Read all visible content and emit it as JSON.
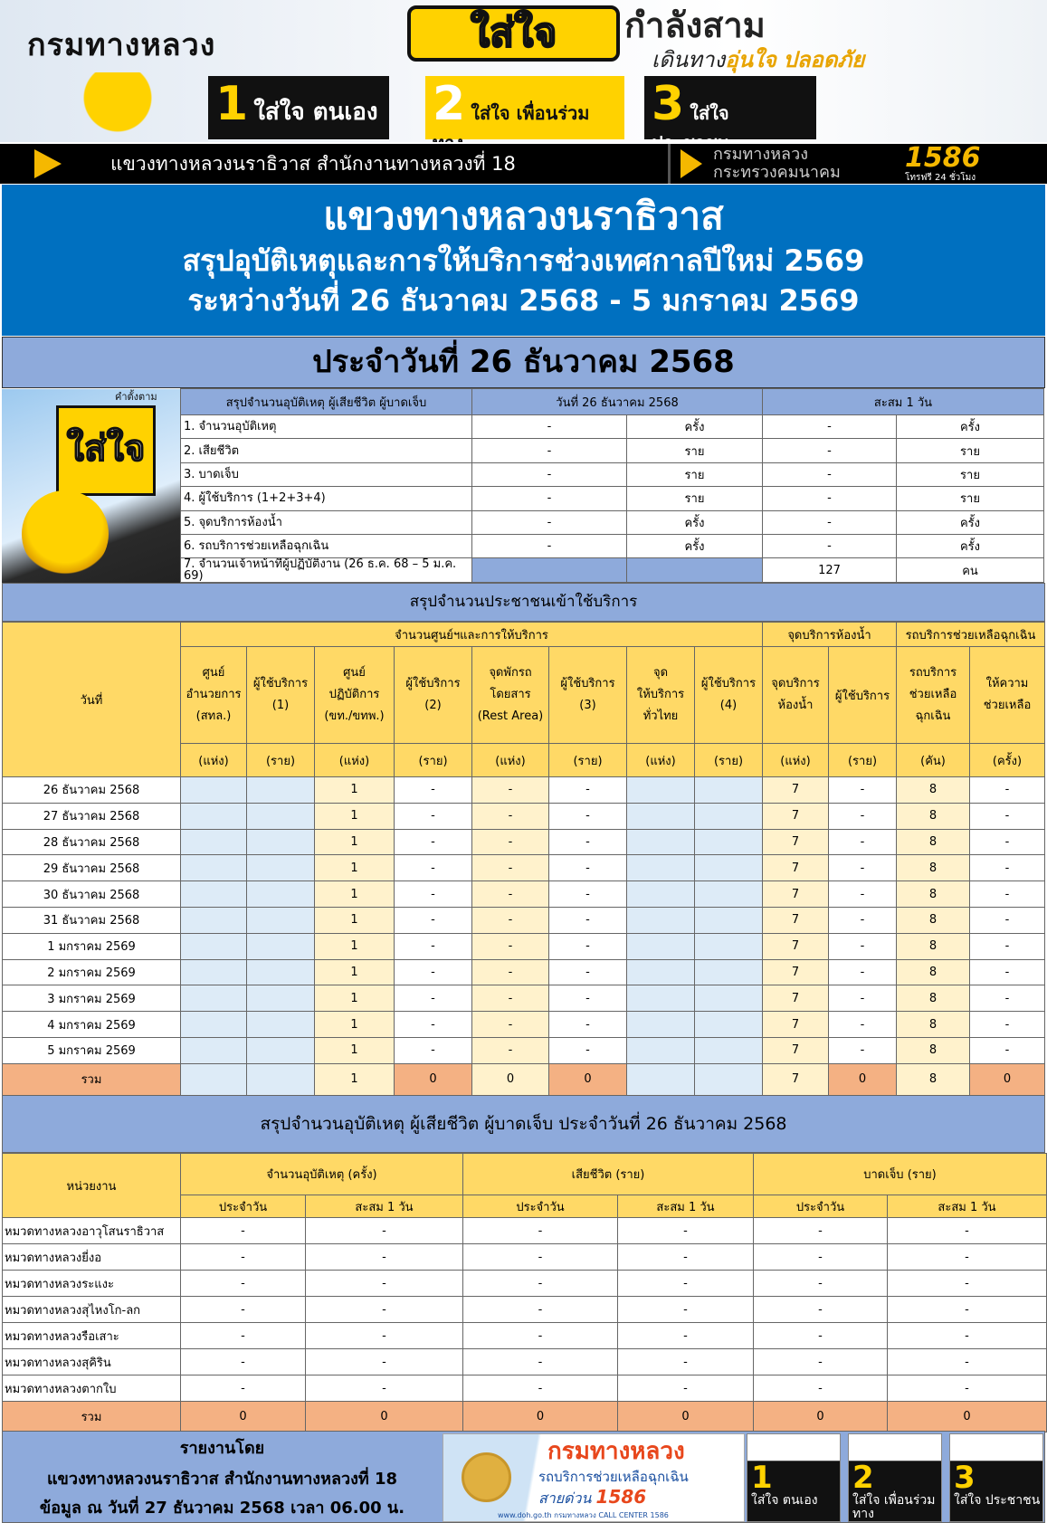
{
  "banner": {
    "logo": "กรมทางหลวง",
    "sai_jai": "ใส่ใจ",
    "kamlang_sam": "กำลังสาม",
    "doen_thang": "เดินทาง",
    "un_jai": "อุ่นใจ",
    "plot_phai": "ปลอดภัย",
    "points": [
      {
        "num": "1",
        "label": "ใส่ใจ ตนเอง"
      },
      {
        "num": "2",
        "label": "ใส่ใจ เพื่อนร่วมทาง"
      },
      {
        "num": "3",
        "label": "ใส่ใจ ประชาชน"
      }
    ]
  },
  "blackbar": {
    "office": "แขวงทางหลวงนราธิวาส  สำนักงานทางหลวงที่ 18",
    "doh": "กรมทางหลวง",
    "ministry": "กระทรวงคมนาคม",
    "hotline": "1586",
    "hotline_sub": "โทรฟรี 24 ชั่วโมง"
  },
  "title": {
    "line1": "แขวงทางหลวงนราธิวาส",
    "line2": "สรุปอุบัติเหตุและการให้บริการช่วงเทศกาลปีใหม่  2569",
    "line3": "ระหว่างวันที่  26 ธันวาคม 2568 -  5 มกราคม 2569"
  },
  "date_bar": "ประจำวันที่ 26  ธันวาคม 2568",
  "summary_image": {
    "caption": "คำตั้งตาม",
    "text": "ใส่ใจ"
  },
  "summary": {
    "headers": [
      "สรุปจำนวนอุบัติเหตุ ผู้เสียชีวิต ผู้บาดเจ็บ",
      "วันที่ 26 ธันวาคม 2568",
      "สะสม 1 วัน"
    ],
    "rows": [
      {
        "label": "1. จำนวนอุบัติเหตุ",
        "day": "-",
        "day_unit": "ครั้ง",
        "cum": "-",
        "cum_unit": "ครั้ง"
      },
      {
        "label": "2. เสียชีวิต",
        "day": "-",
        "day_unit": "ราย",
        "cum": "-",
        "cum_unit": "ราย"
      },
      {
        "label": "3. บาดเจ็บ",
        "day": "-",
        "day_unit": "ราย",
        "cum": "-",
        "cum_unit": "ราย"
      },
      {
        "label": "4. ผู้ใช้บริการ (1+2+3+4)",
        "day": "-",
        "day_unit": "ราย",
        "cum": "-",
        "cum_unit": "ราย"
      },
      {
        "label": "5. จุดบริการห้องน้ำ",
        "day": "-",
        "day_unit": "ครั้ง",
        "cum": "-",
        "cum_unit": "ครั้ง"
      },
      {
        "label": "6. รถบริการช่วยเหลือฉุกเฉิน",
        "day": "-",
        "day_unit": "ครั้ง",
        "cum": "-",
        "cum_unit": "ครั้ง"
      },
      {
        "label": "7. จำนวนเจ้าหน้าที่ผู้ปฏิบัติงาน (26 ธ.ค. 68 – 5 ม.ค. 69)",
        "day": "",
        "day_unit": "",
        "cum": "127",
        "cum_unit": "คน"
      }
    ]
  },
  "service": {
    "section_title": "สรุปจำนวนประชาชนเข้าใช้บริการ",
    "date_header": "วันที่",
    "groups": [
      "จำนวนศูนย์ฯและการให้บริการ",
      "จุดบริการห้องน้ำ",
      "รถบริการช่วยเหลือฉุกเฉิน"
    ],
    "columns": [
      "ศูนย์\nอำนวยการ\n(สทล.)",
      "ผู้ใช้บริการ\n(1)",
      "ศูนย์\nปฏิบัติการ\n(ขท./ขทพ.)",
      "ผู้ใช้บริการ\n(2)",
      "จุดพักรถ\nโดยสาร\n(Rest Area)",
      "ผู้ใช้บริการ\n(3)",
      "จุด\nให้บริการ\nทั่วไทย",
      "ผู้ใช้บริการ\n(4)",
      "จุดบริการ\nห้องน้ำ",
      "ผู้ใช้บริการ",
      "รถบริการ\nช่วยเหลือ\nฉุกเฉิน",
      "ให้ความ\nช่วยเหลือ"
    ],
    "units": [
      "(แห่ง)",
      "(ราย)",
      "(แห่ง)",
      "(ราย)",
      "(แห่ง)",
      "(ราย)",
      "(แห่ง)",
      "(ราย)",
      "(แห่ง)",
      "(ราย)",
      "(คัน)",
      "(ครั้ง)"
    ],
    "rows": [
      {
        "date": "26 ธันวาคม 2568",
        "values": [
          "",
          "",
          "1",
          "-",
          "-",
          "-",
          "",
          "",
          "7",
          "-",
          "8",
          "-"
        ]
      },
      {
        "date": "27 ธันวาคม 2568",
        "values": [
          "",
          "",
          "1",
          "-",
          "-",
          "-",
          "",
          "",
          "7",
          "-",
          "8",
          "-"
        ]
      },
      {
        "date": "28 ธันวาคม 2568",
        "values": [
          "",
          "",
          "1",
          "-",
          "-",
          "-",
          "",
          "",
          "7",
          "-",
          "8",
          "-"
        ]
      },
      {
        "date": "29 ธันวาคม 2568",
        "values": [
          "",
          "",
          "1",
          "-",
          "-",
          "-",
          "",
          "",
          "7",
          "-",
          "8",
          "-"
        ]
      },
      {
        "date": "30 ธันวาคม 2568",
        "values": [
          "",
          "",
          "1",
          "-",
          "-",
          "-",
          "",
          "",
          "7",
          "-",
          "8",
          "-"
        ]
      },
      {
        "date": "31 ธันวาคม 2568",
        "values": [
          "",
          "",
          "1",
          "-",
          "-",
          "-",
          "",
          "",
          "7",
          "-",
          "8",
          "-"
        ]
      },
      {
        "date": "1 มกราคม 2569",
        "values": [
          "",
          "",
          "1",
          "-",
          "-",
          "-",
          "",
          "",
          "7",
          "-",
          "8",
          "-"
        ]
      },
      {
        "date": "2 มกราคม 2569",
        "values": [
          "",
          "",
          "1",
          "-",
          "-",
          "-",
          "",
          "",
          "7",
          "-",
          "8",
          "-"
        ]
      },
      {
        "date": "3 มกราคม 2569",
        "values": [
          "",
          "",
          "1",
          "-",
          "-",
          "-",
          "",
          "",
          "7",
          "-",
          "8",
          "-"
        ]
      },
      {
        "date": "4 มกราคม 2569",
        "values": [
          "",
          "",
          "1",
          "-",
          "-",
          "-",
          "",
          "",
          "7",
          "-",
          "8",
          "-"
        ]
      },
      {
        "date": "5 มกราคม 2569",
        "values": [
          "",
          "",
          "1",
          "-",
          "-",
          "-",
          "",
          "",
          "7",
          "-",
          "8",
          "-"
        ]
      }
    ],
    "total": {
      "label": "รวม",
      "values": [
        "",
        "",
        "1",
        "0",
        "0",
        "0",
        "",
        "",
        "7",
        "0",
        "8",
        "0"
      ]
    }
  },
  "accidents": {
    "section_title": "สรุปจำนวนอุบัติเหตุ ผู้เสียชีวิต ผู้บาดเจ็บ ประจำวันที่ 26 ธันวาคม 2568",
    "unit_header": "หน่วยงาน",
    "groups": [
      "จำนวนอุบัติเหตุ (ครั้ง)",
      "เสียชีวิต (ราย)",
      "บาดเจ็บ (ราย)"
    ],
    "subheaders": [
      "ประจำวัน",
      "สะสม 1 วัน"
    ],
    "rows": [
      {
        "unit": "หมวดทางหลวงอาวุโสนราธิวาส",
        "values": [
          "-",
          "-",
          "-",
          "-",
          "-",
          "-"
        ]
      },
      {
        "unit": "หมวดทางหลวงยี่งอ",
        "values": [
          "-",
          "-",
          "-",
          "-",
          "-",
          "-"
        ]
      },
      {
        "unit": "หมวดทางหลวงระแงะ",
        "values": [
          "-",
          "-",
          "-",
          "-",
          "-",
          "-"
        ]
      },
      {
        "unit": "หมวดทางหลวงสุไหงโก-ลก",
        "values": [
          "-",
          "-",
          "-",
          "-",
          "-",
          "-"
        ]
      },
      {
        "unit": "หมวดทางหลวงรือเสาะ",
        "values": [
          "-",
          "-",
          "-",
          "-",
          "-",
          "-"
        ]
      },
      {
        "unit": "หมวดทางหลวงสุคิริน",
        "values": [
          "-",
          "-",
          "-",
          "-",
          "-",
          "-"
        ]
      },
      {
        "unit": "หมวดทางหลวงตากใบ",
        "values": [
          "-",
          "-",
          "-",
          "-",
          "-",
          "-"
        ]
      }
    ],
    "total": {
      "label": "รวม",
      "values": [
        "0",
        "0",
        "0",
        "0",
        "0",
        "0"
      ]
    }
  },
  "footer": {
    "reported_by": "รายงานโดย",
    "office": "แขวงทางหลวงนราธิวาส สำนักงานทางหลวงที่ 18",
    "data_as_of": "ข้อมูล ณ วันที่ 27 ธันวาคม 2568 เวลา 06.00 น.",
    "ad": {
      "logo": "กรมทางหลวง",
      "service": "รถบริการช่วยเหลือฉุกเฉิน",
      "hotline_label": "สายด่วน",
      "hotline": "1586",
      "web": "www.doh.go.th   กรมทางหลวง   CALL CENTER 1586"
    },
    "posters": [
      {
        "num": "1",
        "label": "ใส่ใจ ตนเอง"
      },
      {
        "num": "2",
        "label": "ใส่ใจ เพื่อนร่วมทาง"
      },
      {
        "num": "3",
        "label": "ใส่ใจ ประชาชน"
      }
    ]
  },
  "colors": {
    "title_blue": "#0070c0",
    "header_blue": "#8eaadb",
    "header_yellow": "#ffd966",
    "cell_light_yellow": "#fff2cc",
    "cell_light_blue": "#ddebf7",
    "total_salmon": "#f4b183"
  }
}
